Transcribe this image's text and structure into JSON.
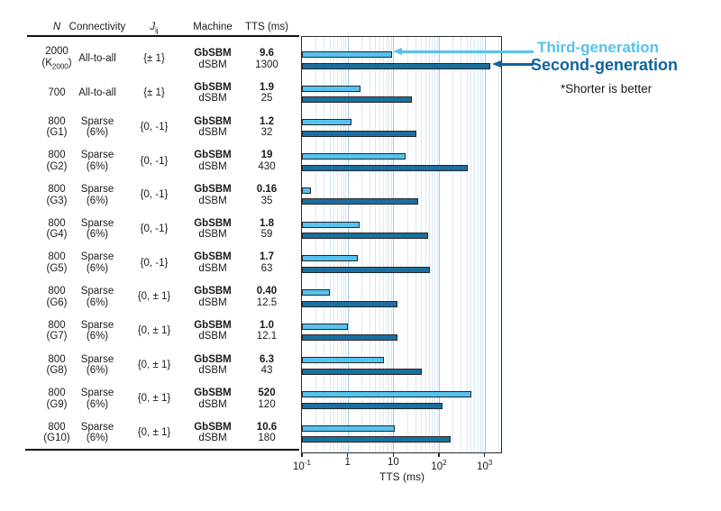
{
  "table": {
    "headers": {
      "n": "N",
      "connectivity": "Connectivity",
      "j_base": "J",
      "j_sub": "ij",
      "machine": "Machine",
      "tts": "TTS (ms)"
    },
    "rows": [
      {
        "n1": "2000",
        "n2_pre": "(K",
        "n2_sub": "2000",
        "n2_post": ")",
        "conn": [
          "All-to-all"
        ],
        "j": "{± 1}",
        "machines": [
          "GbSBM",
          "dSBM"
        ],
        "tts": [
          "9.6",
          "1300"
        ]
      },
      {
        "n1": "700",
        "conn": [
          "All-to-all"
        ],
        "j": "{± 1}",
        "machines": [
          "GbSBM",
          "dSBM"
        ],
        "tts": [
          "1.9",
          "25"
        ]
      },
      {
        "n1": "800",
        "n2": "(G1)",
        "conn": [
          "Sparse",
          "(6%)"
        ],
        "j": "{0, -1}",
        "machines": [
          "GbSBM",
          "dSBM"
        ],
        "tts": [
          "1.2",
          "32"
        ]
      },
      {
        "n1": "800",
        "n2": "(G2)",
        "conn": [
          "Sparse",
          "(6%)"
        ],
        "j": "{0, -1}",
        "machines": [
          "GbSBM",
          "dSBM"
        ],
        "tts": [
          "19",
          "430"
        ]
      },
      {
        "n1": "800",
        "n2": "(G3)",
        "conn": [
          "Sparse",
          "(6%)"
        ],
        "j": "{0, -1}",
        "machines": [
          "GbSBM",
          "dSBM"
        ],
        "tts": [
          "0.16",
          "35"
        ]
      },
      {
        "n1": "800",
        "n2": "(G4)",
        "conn": [
          "Sparse",
          "(6%)"
        ],
        "j": "{0, -1}",
        "machines": [
          "GbSBM",
          "dSBM"
        ],
        "tts": [
          "1.8",
          "59"
        ]
      },
      {
        "n1": "800",
        "n2": "(G5)",
        "conn": [
          "Sparse",
          "(6%)"
        ],
        "j": "{0, -1}",
        "machines": [
          "GbSBM",
          "dSBM"
        ],
        "tts": [
          "1.7",
          "63"
        ]
      },
      {
        "n1": "800",
        "n2": "(G6)",
        "conn": [
          "Sparse",
          "(6%)"
        ],
        "j": "{0, ± 1}",
        "machines": [
          "GbSBM",
          "dSBM"
        ],
        "tts": [
          "0.40",
          "12.5"
        ]
      },
      {
        "n1": "800",
        "n2": "(G7)",
        "conn": [
          "Sparse",
          "(6%)"
        ],
        "j": "{0, ± 1}",
        "machines": [
          "GbSBM",
          "dSBM"
        ],
        "tts": [
          "1.0",
          "12.1"
        ]
      },
      {
        "n1": "800",
        "n2": "(G8)",
        "conn": [
          "Sparse",
          "(6%)"
        ],
        "j": "{0, ± 1}",
        "machines": [
          "GbSBM",
          "dSBM"
        ],
        "tts": [
          "6.3",
          "43"
        ]
      },
      {
        "n1": "800",
        "n2": "(G9)",
        "conn": [
          "Sparse",
          "(6%)"
        ],
        "j": "{0, ± 1}",
        "machines": [
          "GbSBM",
          "dSBM"
        ],
        "tts": [
          "520",
          "120"
        ]
      },
      {
        "n1": "800",
        "n2": "(G10)",
        "conn": [
          "Sparse",
          "(6%)"
        ],
        "j": "{0, ± 1}",
        "machines": [
          "GbSBM",
          "dSBM"
        ],
        "tts": [
          "10.6",
          "180"
        ]
      }
    ]
  },
  "chart_data": {
    "type": "bar",
    "orientation": "horizontal",
    "xscale": "log",
    "xlabel": "TTS (ms)",
    "xlim": [
      0.1,
      2512
    ],
    "xticks": [
      "10^-1",
      "1",
      "10",
      "10^2",
      "10^3"
    ],
    "xtick_values": [
      0.1,
      1,
      10,
      100,
      1000
    ],
    "xtick_labels": [
      {
        "base": "10",
        "sup": "-1"
      },
      {
        "base": "1"
      },
      {
        "base": "10"
      },
      {
        "base": "10",
        "sup": "2"
      },
      {
        "base": "10",
        "sup": "3"
      }
    ],
    "grid": "vertical log minor+major",
    "legend_position": "right-top",
    "categories": [
      "2000 (K2000)",
      "700",
      "800 (G1)",
      "800 (G2)",
      "800 (G3)",
      "800 (G4)",
      "800 (G5)",
      "800 (G6)",
      "800 (G7)",
      "800 (G8)",
      "800 (G9)",
      "800 (G10)"
    ],
    "series": [
      {
        "name": "Third-generation",
        "machine": "GbSBM",
        "color": "#54c3f0",
        "values": [
          9.6,
          1.9,
          1.2,
          19,
          0.16,
          1.8,
          1.7,
          0.4,
          1.0,
          6.3,
          520,
          10.6
        ]
      },
      {
        "name": "Second-generation",
        "machine": "dSBM",
        "color": "#1a6fa0",
        "values": [
          1300,
          25,
          32,
          430,
          35,
          59,
          63,
          12.5,
          12.1,
          43,
          120,
          180
        ]
      }
    ]
  },
  "legend": {
    "third": "Third-generation",
    "second": "Second-generation",
    "note": "*Shorter is better",
    "third_color": "#54c3f0",
    "second_color": "#0f639e"
  },
  "colors": {
    "bar_light": "#54c3f0",
    "bar_dark": "#1a6fa0",
    "bar_border": "#252525",
    "grid_minor": "#d7e8f7",
    "grid_major": "#a4c9e8",
    "frame": "#2b2b2b"
  }
}
